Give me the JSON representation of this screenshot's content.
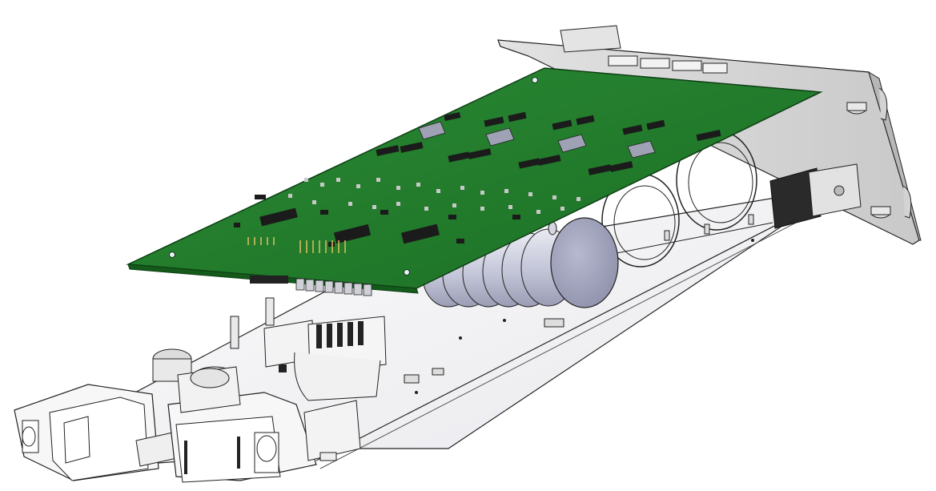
{
  "view": {
    "description_visible_text": "",
    "background": "#ffffff"
  },
  "colors": {
    "pcb_green": "#1f7a2a",
    "pcb_green_dark": "#15591d",
    "pcb_edge": "#0e3f14",
    "chip_black": "#1b1b1b",
    "metal_light": "#e6e6ea",
    "metal_mid": "#c8c9d2",
    "metal_dark": "#9a9ba8",
    "panel_grey": "#d7d7d7",
    "capacitor_blue": "#b4b6cc",
    "line": "#222222"
  },
  "parts": {
    "front_panel": "front-panel",
    "main_pcb": "main-pcb",
    "base_board": "base-board",
    "capacitor_bank": "capacitor-bank",
    "xlr_connectors": "xlr-connector",
    "terminal_blocks": "terminal-block"
  }
}
